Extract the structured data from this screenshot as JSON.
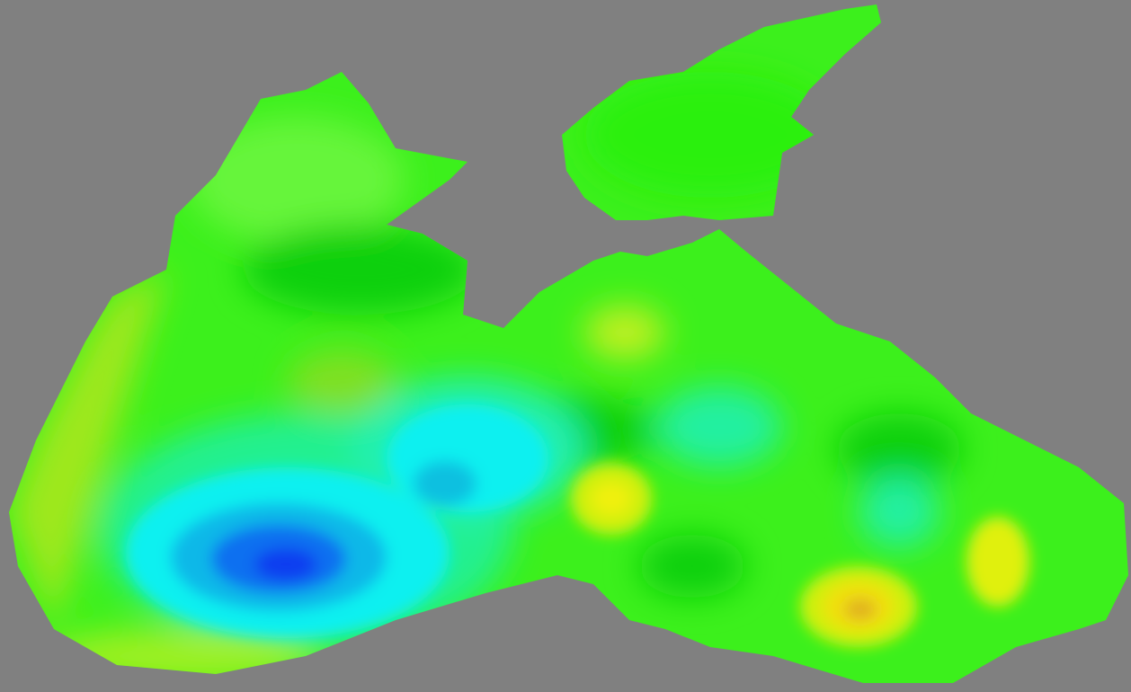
{
  "map": {
    "background": "#808080",
    "colors": {
      "base_green": "#3cf01c",
      "light_green": "#66f53a",
      "dark_green": "#10d010",
      "yellow_green": "#9ee81a",
      "yellow": "#f0f010",
      "orange": "#e0b020",
      "teal": "#20f0a0",
      "cyan": "#10f0f0",
      "sky": "#10b8e8",
      "blue": "#0a3cf0"
    }
  }
}
